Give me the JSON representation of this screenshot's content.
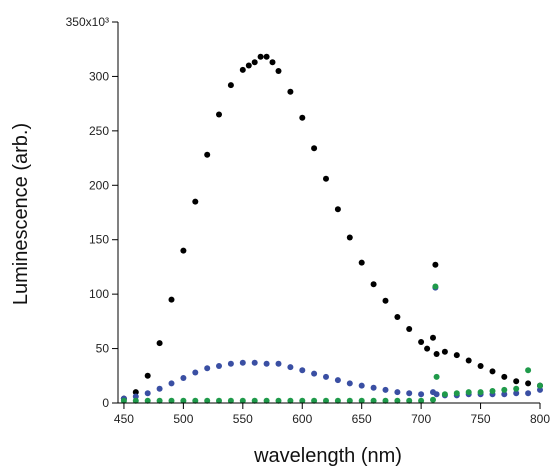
{
  "chart_data": {
    "type": "scatter",
    "title": "",
    "xlabel": "wavelength (nm)",
    "ylabel": "Luminescence (arb.)",
    "xlim": [
      445,
      800
    ],
    "ylim": [
      0,
      350000
    ],
    "x_ticks": [
      450,
      500,
      550,
      600,
      650,
      700,
      750,
      800
    ],
    "y_ticks": [
      0,
      50,
      100,
      150,
      200,
      250,
      300,
      350
    ],
    "y_tick_labels": [
      "0",
      "50",
      "100",
      "150",
      "200",
      "250",
      "300",
      "350x10³"
    ],
    "grid": false,
    "legend": "none",
    "series": [
      {
        "color": "#000000",
        "x": [
          450,
          460,
          470,
          480,
          490,
          500,
          510,
          520,
          530,
          540,
          550,
          555,
          560,
          565,
          570,
          575,
          580,
          590,
          600,
          610,
          620,
          630,
          640,
          650,
          660,
          670,
          680,
          690,
          700,
          705,
          710,
          712,
          713,
          720,
          730,
          740,
          750,
          760,
          770,
          780,
          790,
          800
        ],
        "y": [
          4000,
          10000,
          25000,
          55000,
          95000,
          140000,
          185000,
          228000,
          265000,
          292000,
          306000,
          310000,
          313000,
          318000,
          318000,
          313000,
          305000,
          286000,
          262000,
          234000,
          206000,
          178000,
          152000,
          129000,
          109000,
          94000,
          79000,
          68000,
          56000,
          50000,
          60000,
          127000,
          45000,
          47000,
          44000,
          39000,
          34000,
          29000,
          24000,
          20000,
          18000,
          16000
        ]
      },
      {
        "color": "#3a4fa3",
        "x": [
          450,
          460,
          470,
          480,
          490,
          500,
          510,
          520,
          530,
          540,
          550,
          560,
          570,
          580,
          590,
          600,
          610,
          620,
          630,
          640,
          650,
          660,
          670,
          680,
          690,
          700,
          710,
          712,
          713,
          720,
          730,
          740,
          750,
          760,
          770,
          780,
          790,
          800
        ],
        "y": [
          4000,
          6000,
          9000,
          13000,
          18000,
          23000,
          28000,
          32000,
          34000,
          36000,
          37000,
          37000,
          36000,
          36000,
          33000,
          30000,
          27000,
          24000,
          21000,
          18000,
          16000,
          14000,
          12000,
          10000,
          9000,
          8000,
          10000,
          106000,
          8000,
          7000,
          7000,
          8000,
          8000,
          8000,
          8000,
          9000,
          9000,
          12000
        ]
      },
      {
        "color": "#1f9a4a",
        "x": [
          450,
          460,
          470,
          480,
          490,
          500,
          510,
          520,
          530,
          540,
          550,
          560,
          570,
          580,
          590,
          600,
          610,
          620,
          630,
          640,
          650,
          660,
          670,
          680,
          690,
          700,
          710,
          712,
          713,
          720,
          730,
          740,
          750,
          760,
          770,
          780,
          790,
          800
        ],
        "y": [
          2000,
          2000,
          2000,
          2000,
          2000,
          2000,
          2000,
          2000,
          2000,
          2000,
          2000,
          2000,
          2000,
          2000,
          2000,
          2000,
          2000,
          2000,
          2000,
          2000,
          2000,
          2000,
          2000,
          2000,
          2000,
          2000,
          3000,
          107000,
          24000,
          8000,
          9000,
          10000,
          10000,
          11000,
          12000,
          13000,
          30000,
          16000
        ]
      }
    ]
  }
}
